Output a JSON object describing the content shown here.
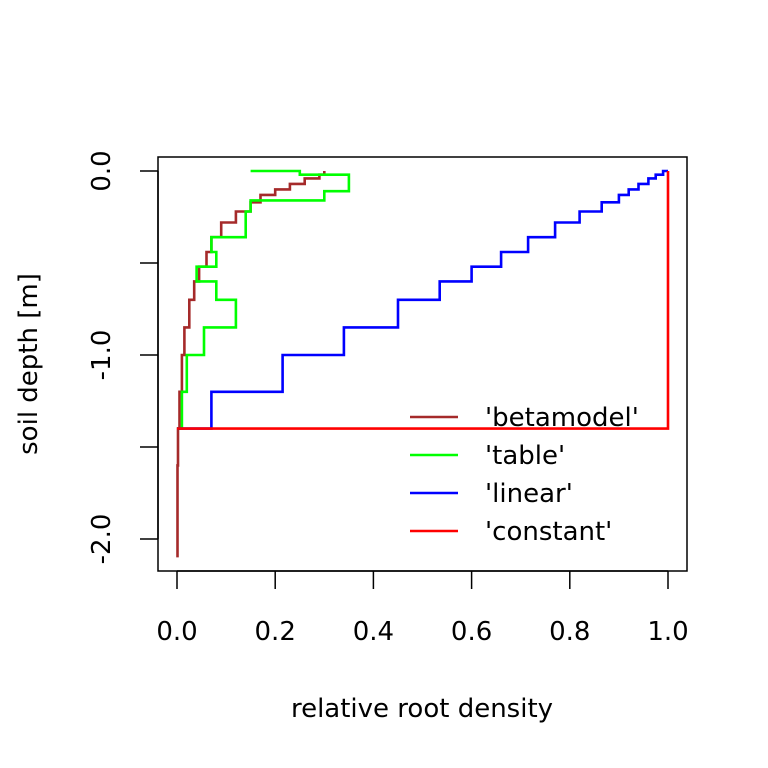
{
  "chart_data": {
    "type": "line",
    "xlabel": "relative root density",
    "ylabel": "soil depth [m]",
    "xlim": [
      0.0,
      1.0
    ],
    "ylim": [
      -2.1,
      0.0
    ],
    "x_ticks": [
      "0.0",
      "0.2",
      "0.4",
      "0.6",
      "0.8",
      "1.0"
    ],
    "y_ticks": [
      "0.0",
      "-1.0",
      "-2.0"
    ],
    "legend_position": "bottom-right",
    "series": [
      {
        "name": "'betamodel'",
        "color": "#a52a2a",
        "x": [
          0.3,
          0.3,
          0.29,
          0.29,
          0.26,
          0.26,
          0.23,
          0.23,
          0.2,
          0.2,
          0.17,
          0.17,
          0.15,
          0.15,
          0.12,
          0.12,
          0.09,
          0.09,
          0.07,
          0.07,
          0.06,
          0.06,
          0.045,
          0.045,
          0.035,
          0.035,
          0.025,
          0.025,
          0.015,
          0.015,
          0.01,
          0.01,
          0.005,
          0.005,
          0.002,
          0.002,
          0.001,
          0.001
        ],
        "y": [
          0.0,
          -0.02,
          -0.02,
          -0.04,
          -0.04,
          -0.07,
          -0.07,
          -0.1,
          -0.1,
          -0.13,
          -0.13,
          -0.17,
          -0.17,
          -0.22,
          -0.22,
          -0.28,
          -0.28,
          -0.36,
          -0.36,
          -0.44,
          -0.44,
          -0.52,
          -0.52,
          -0.6,
          -0.6,
          -0.7,
          -0.7,
          -0.85,
          -0.85,
          -1.0,
          -1.0,
          -1.2,
          -1.2,
          -1.4,
          -1.4,
          -1.6,
          -1.6,
          -2.1
        ]
      },
      {
        "name": "'table'",
        "color": "#00ff00",
        "x": [
          0.15,
          0.25,
          0.25,
          0.35,
          0.35,
          0.3,
          0.3,
          0.15,
          0.15,
          0.14,
          0.14,
          0.07,
          0.07,
          0.08,
          0.08,
          0.04,
          0.04,
          0.08,
          0.08,
          0.12,
          0.12,
          0.055,
          0.055,
          0.02,
          0.02,
          0.01,
          0.01,
          0.0
        ],
        "y": [
          0.0,
          0.0,
          -0.02,
          -0.02,
          -0.11,
          -0.11,
          -0.16,
          -0.16,
          -0.22,
          -0.22,
          -0.36,
          -0.36,
          -0.44,
          -0.44,
          -0.52,
          -0.52,
          -0.6,
          -0.6,
          -0.7,
          -0.7,
          -0.85,
          -0.85,
          -1.0,
          -1.0,
          -1.2,
          -1.2,
          -1.4,
          -1.4
        ]
      },
      {
        "name": "'linear'",
        "color": "#0000ff",
        "x": [
          1.0,
          0.99,
          0.99,
          0.975,
          0.975,
          0.96,
          0.96,
          0.94,
          0.94,
          0.92,
          0.92,
          0.9,
          0.9,
          0.865,
          0.865,
          0.82,
          0.82,
          0.77,
          0.77,
          0.715,
          0.715,
          0.66,
          0.66,
          0.6,
          0.6,
          0.535,
          0.535,
          0.45,
          0.45,
          0.34,
          0.34,
          0.215,
          0.215,
          0.07,
          0.07,
          0.0
        ],
        "y": [
          0.0,
          0.0,
          -0.02,
          -0.02,
          -0.04,
          -0.04,
          -0.07,
          -0.07,
          -0.1,
          -0.1,
          -0.13,
          -0.13,
          -0.17,
          -0.17,
          -0.22,
          -0.22,
          -0.28,
          -0.28,
          -0.36,
          -0.36,
          -0.44,
          -0.44,
          -0.52,
          -0.52,
          -0.6,
          -0.6,
          -0.7,
          -0.7,
          -0.85,
          -0.85,
          -1.0,
          -1.0,
          -1.2,
          -1.2,
          -1.4,
          -1.4
        ]
      },
      {
        "name": "'constant'",
        "color": "#ff0000",
        "x": [
          1.0,
          1.0,
          0.0
        ],
        "y": [
          0.0,
          -1.4,
          -1.4
        ]
      }
    ]
  }
}
